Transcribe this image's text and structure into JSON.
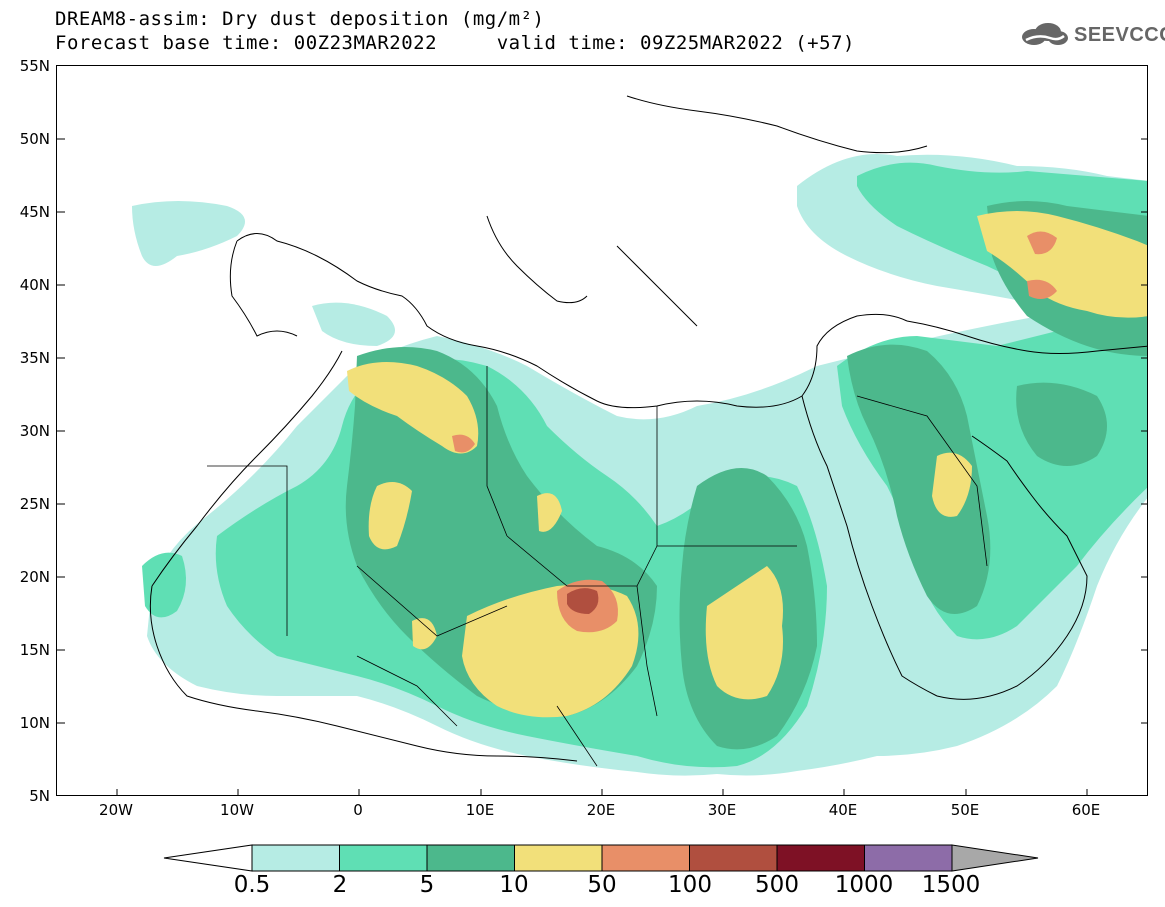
{
  "title": {
    "line1": "DREAM8-assim: Dry dust deposition (mg/m²)",
    "line2": "Forecast base time: 00Z23MAR2022     valid time: 09Z25MAR2022 (+57)"
  },
  "logo": {
    "text": "SEEVCCC",
    "icon": "cloud-logo-icon"
  },
  "axes": {
    "lat_labels": [
      "55N",
      "50N",
      "45N",
      "40N",
      "35N",
      "30N",
      "25N",
      "20N",
      "15N",
      "10N",
      "5N"
    ],
    "lon_labels": [
      "20W",
      "10W",
      "0",
      "10E",
      "20E",
      "30E",
      "40E",
      "50E",
      "60E"
    ]
  },
  "colorbar": {
    "labels": [
      "0.5",
      "2",
      "5",
      "10",
      "50",
      "100",
      "500",
      "1000",
      "1500"
    ],
    "colors": [
      "#b6ece4",
      "#5fdfb4",
      "#4cb88c",
      "#f2e07a",
      "#e88f68",
      "#b04f3f",
      "#7e1125",
      "#8d6ca8",
      "#a8a8a8"
    ]
  }
}
